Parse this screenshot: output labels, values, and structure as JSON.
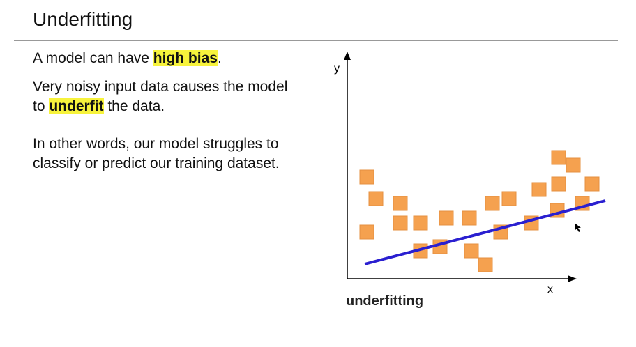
{
  "header": {
    "title": "Underfitting"
  },
  "paragraphs": [
    [
      {
        "text": "A model can have "
      },
      {
        "text": "high bias",
        "highlight": true
      },
      {
        "text": "."
      }
    ],
    [
      {
        "text": "Very noisy input data causes the model"
      }
    ],
    [
      {
        "text": "to "
      },
      {
        "text": "underfit",
        "highlight": true
      },
      {
        "text": " the data."
      }
    ],
    [
      {
        "text": "In other words, our model struggles to"
      }
    ],
    [
      {
        "text": "classify or predict our training dataset."
      }
    ]
  ],
  "diagram": {
    "y_label": "y",
    "x_label": "x",
    "caption": "underfitting"
  }
}
